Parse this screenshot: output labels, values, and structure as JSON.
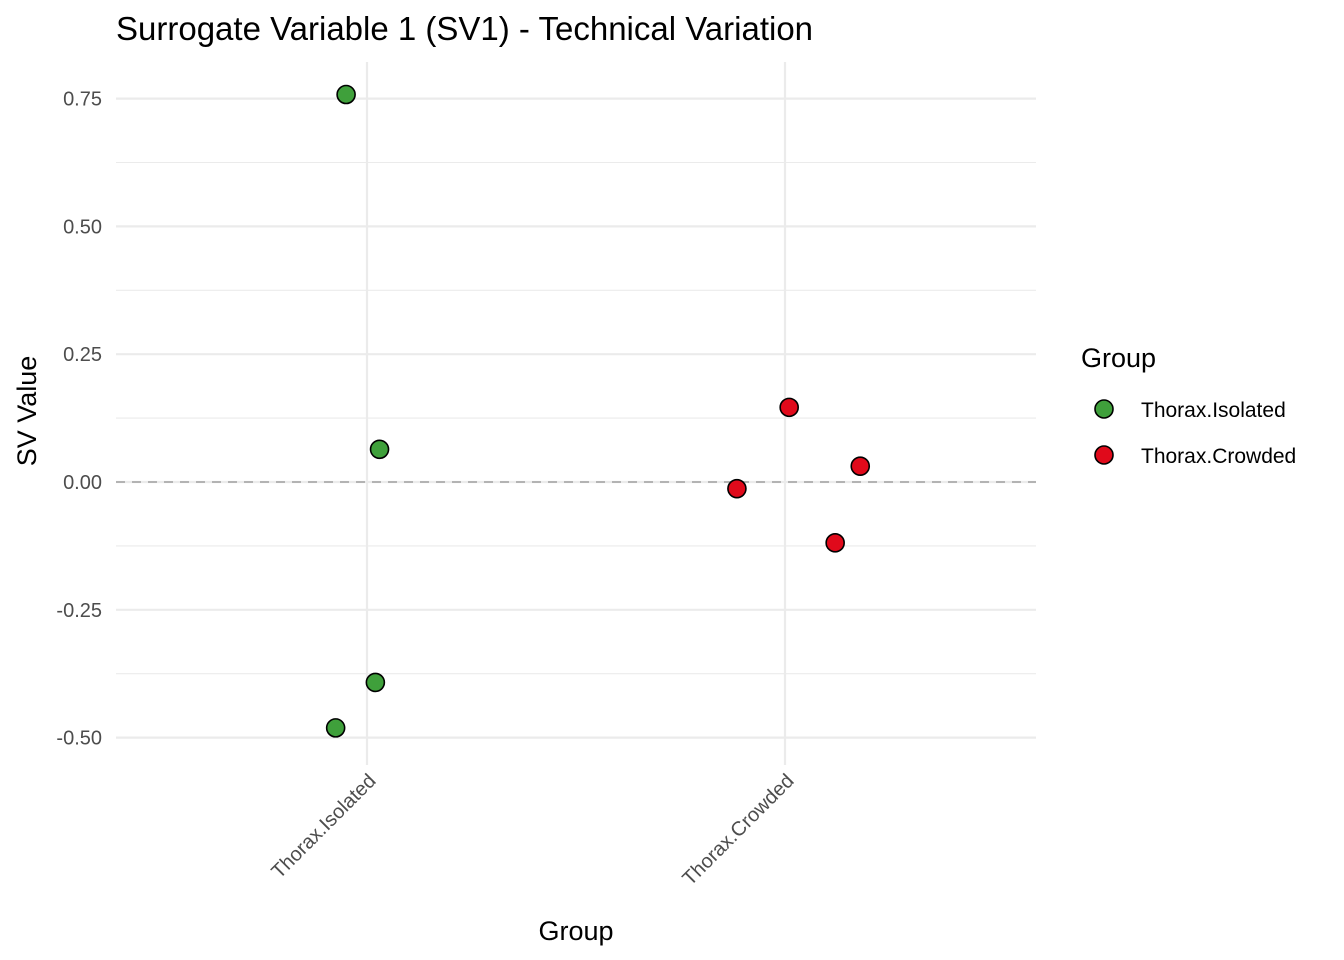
{
  "chart_data": {
    "type": "scatter",
    "title": "Surrogate Variable 1 (SV1) - Technical Variation",
    "xlabel": "Group",
    "ylabel": "SV Value",
    "categories": [
      "Thorax.Isolated",
      "Thorax.Crowded"
    ],
    "ylim": [
      -0.535,
      0.82
    ],
    "yticks": [
      -0.5,
      -0.25,
      0.0,
      0.25,
      0.5,
      0.75
    ],
    "ytick_labels": [
      "-0.50",
      "-0.25",
      "0.00",
      "0.25",
      "0.50",
      "0.75"
    ],
    "reference_line": {
      "y": 0.0,
      "style": "dashed"
    },
    "grid": true,
    "legend": {
      "title": "Group",
      "position": "right",
      "entries": [
        {
          "label": "Thorax.Isolated",
          "color": "#3fa03b"
        },
        {
          "label": "Thorax.Crowded",
          "color": "#e00a1b"
        }
      ]
    },
    "series": [
      {
        "name": "Thorax.Isolated",
        "color": "#3fa03b",
        "points": [
          {
            "x_offset": -0.05,
            "y": 0.758
          },
          {
            "x_offset": 0.03,
            "y": 0.064
          },
          {
            "x_offset": 0.02,
            "y": -0.392
          },
          {
            "x_offset": -0.075,
            "y": -0.481
          }
        ]
      },
      {
        "name": "Thorax.Crowded",
        "color": "#e00a1b",
        "points": [
          {
            "x_offset": 0.01,
            "y": 0.146
          },
          {
            "x_offset": 0.18,
            "y": 0.031
          },
          {
            "x_offset": -0.115,
            "y": -0.013
          },
          {
            "x_offset": 0.12,
            "y": -0.119
          }
        ]
      }
    ]
  }
}
